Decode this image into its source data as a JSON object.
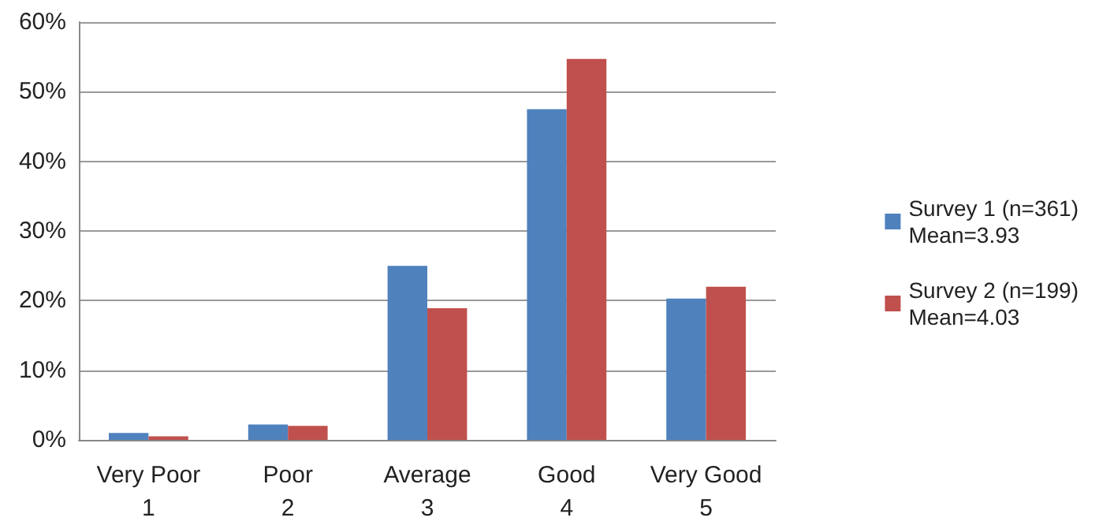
{
  "chart_data": {
    "type": "bar",
    "categories": [
      "Very Poor\n1",
      "Poor\n2",
      "Average\n3",
      "Good\n4",
      "Very Good\n5"
    ],
    "series": [
      {
        "name": "Survey 1 (n=361)\nMean=3.93",
        "color": "#4f81bd",
        "values": [
          1.0,
          2.2,
          25.0,
          47.5,
          20.3
        ]
      },
      {
        "name": "Survey 2 (n=199)\nMean=4.03",
        "color": "#c0504d",
        "values": [
          0.5,
          2.0,
          18.9,
          54.7,
          22.0
        ]
      }
    ],
    "ylim": [
      0,
      60
    ],
    "yticks": [
      {
        "value": 0,
        "label": "0%"
      },
      {
        "value": 10,
        "label": "10%"
      },
      {
        "value": 20,
        "label": "20%"
      },
      {
        "value": 30,
        "label": "30%"
      },
      {
        "value": 40,
        "label": "40%"
      },
      {
        "value": 50,
        "label": "50%"
      },
      {
        "value": 60,
        "label": "60%"
      }
    ],
    "grid": "y",
    "legend": "right"
  }
}
